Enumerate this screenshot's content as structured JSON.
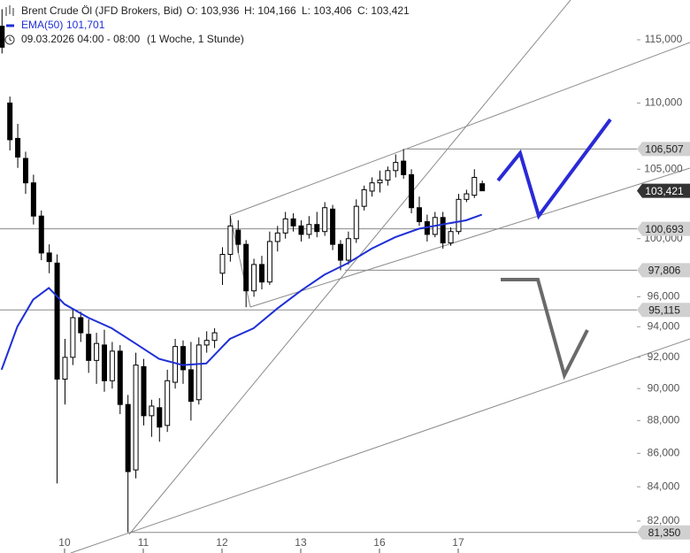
{
  "chart_data": {
    "type": "candlestick",
    "title": "Brent Crude Öl (JFD Brokers, Bid)",
    "ohlc_labels": [
      "O: 103,936",
      "H: 104,166",
      "L: 103,406",
      "C: 103,421"
    ],
    "subtitle": "09.03.2026 04:00 - 08:00",
    "period": "(1 Woche, 1 Stunde)",
    "log_scale": true,
    "ylim": [
      80.18,
      118.26
    ],
    "yticks": [
      {
        "value": 115,
        "label": "115,000"
      },
      {
        "value": 110,
        "label": "110,000"
      },
      {
        "value": 105,
        "label": "105,000"
      },
      {
        "value": 100,
        "label": "100,000"
      },
      {
        "value": 96,
        "label": "96,000"
      },
      {
        "value": 94,
        "label": "94,000"
      },
      {
        "value": 92,
        "label": "92,000"
      },
      {
        "value": 90,
        "label": "90,000"
      },
      {
        "value": 88,
        "label": "88,000"
      },
      {
        "value": 86,
        "label": "86,000"
      },
      {
        "value": 84,
        "label": "84,000"
      },
      {
        "value": 82,
        "label": "82,000"
      }
    ],
    "xlim": [
      -0.82,
      7.27
    ],
    "xticks": [
      {
        "value": 0,
        "label": "10"
      },
      {
        "value": 1,
        "label": "11"
      },
      {
        "value": 2,
        "label": "12"
      },
      {
        "value": 3,
        "label": "13"
      },
      {
        "value": 4,
        "label": "16"
      },
      {
        "value": 5,
        "label": "17"
      }
    ],
    "up_color": "#ffffff",
    "down_color": "#000000",
    "x": [
      -0.8,
      -0.7,
      -0.6,
      -0.5,
      -0.4,
      -0.3,
      -0.2,
      -0.1,
      0.0,
      0.1,
      0.2,
      0.3,
      0.4,
      0.5,
      0.6,
      0.7,
      0.8,
      0.9,
      1.0,
      1.1,
      1.2,
      1.3,
      1.4,
      1.5,
      1.6,
      1.7,
      1.8,
      1.9,
      2.0,
      2.1,
      2.2,
      2.3,
      2.4,
      2.5,
      2.6,
      2.7,
      2.8,
      2.9,
      3.0,
      3.1,
      3.2,
      3.3,
      3.4,
      3.5,
      3.6,
      3.7,
      3.8,
      3.9,
      4.0,
      4.1,
      4.2,
      4.3,
      4.4,
      4.5,
      4.6,
      4.7,
      4.8,
      4.9,
      5.0,
      5.1,
      5.2,
      5.3
    ],
    "open": [
      116.1,
      110.0,
      107.3,
      105.8,
      104.0,
      101.6,
      99.0,
      98.3,
      90.6,
      92.0,
      94.6,
      93.5,
      91.8,
      92.8,
      90.5,
      92.4,
      89.0,
      85.0,
      91.4,
      88.3,
      88.8,
      87.7,
      90.4,
      92.7,
      91.2,
      89.3,
      92.8,
      93.1,
      97.6,
      98.9,
      100.6,
      99.6,
      96.4,
      98.2,
      97.0,
      99.8,
      100.4,
      101.4,
      100.9,
      100.3,
      101.0,
      100.5,
      102.1,
      99.6,
      98.5,
      100.0,
      102.3,
      103.4,
      104.0,
      104.2,
      104.9,
      105.6,
      104.6,
      102.2,
      101.2,
      100.3,
      101.5,
      99.7,
      100.5,
      102.8,
      103.1,
      103.936
    ],
    "high": [
      117.5,
      110.5,
      108.4,
      106.3,
      104.6,
      102.0,
      99.6,
      98.9,
      93.2,
      95.2,
      95.0,
      94.5,
      93.6,
      93.8,
      93.0,
      92.8,
      89.6,
      92.3,
      91.9,
      89.3,
      89.4,
      91.2,
      93.2,
      93.1,
      93.0,
      93.3,
      93.7,
      93.9,
      99.4,
      101.6,
      101.3,
      99.9,
      98.6,
      98.8,
      100.5,
      100.9,
      101.9,
      101.8,
      101.3,
      101.6,
      101.9,
      102.6,
      102.4,
      99.9,
      100.5,
      102.8,
      103.8,
      104.4,
      104.9,
      105.2,
      106.1,
      106.507,
      105.0,
      103.0,
      101.7,
      101.9,
      101.9,
      100.8,
      103.2,
      103.5,
      105.0,
      104.166
    ],
    "low": [
      113.9,
      106.4,
      105.1,
      103.2,
      101.0,
      98.5,
      97.6,
      84.2,
      89.0,
      91.5,
      93.0,
      91.0,
      90.3,
      89.8,
      90.0,
      88.4,
      81.35,
      84.5,
      87.7,
      87.0,
      86.7,
      87.3,
      90.0,
      90.3,
      88.0,
      89.0,
      92.3,
      92.6,
      96.8,
      98.4,
      99.0,
      95.3,
      96.0,
      96.5,
      96.8,
      99.1,
      100.0,
      100.5,
      99.8,
      100.0,
      100.1,
      100.2,
      99.2,
      97.8,
      98.2,
      99.7,
      102.0,
      103.0,
      103.3,
      103.8,
      104.4,
      104.3,
      101.8,
      100.9,
      99.8,
      100.1,
      99.3,
      99.5,
      100.3,
      102.6,
      102.9,
      103.406
    ],
    "close": [
      114.4,
      107.2,
      105.9,
      104.0,
      101.6,
      99.0,
      98.4,
      90.6,
      92.0,
      94.6,
      93.6,
      91.8,
      92.9,
      90.5,
      92.4,
      89.0,
      84.9,
      91.5,
      88.3,
      88.9,
      87.6,
      90.5,
      92.7,
      91.2,
      89.2,
      92.8,
      93.1,
      93.6,
      98.9,
      100.9,
      99.6,
      96.4,
      98.2,
      97.0,
      99.8,
      100.4,
      101.4,
      100.9,
      100.3,
      101.0,
      100.5,
      102.2,
      99.6,
      98.5,
      100.0,
      102.3,
      103.5,
      104.0,
      104.2,
      104.9,
      105.5,
      104.6,
      102.2,
      101.2,
      100.3,
      101.5,
      99.7,
      100.5,
      102.8,
      103.2,
      104.4,
      103.421
    ],
    "ema": {
      "name": "EMA(50)",
      "color": "#1f2fd6",
      "last_label": "101,701",
      "x": [
        -0.8,
        -0.6,
        -0.4,
        -0.2,
        0.0,
        0.3,
        0.6,
        0.9,
        1.2,
        1.5,
        1.8,
        2.1,
        2.4,
        2.7,
        3.0,
        3.3,
        3.6,
        3.9,
        4.2,
        4.5,
        4.8,
        5.1,
        5.3
      ],
      "values": [
        91.2,
        94.0,
        95.8,
        96.6,
        95.5,
        94.6,
        93.9,
        92.9,
        91.9,
        91.5,
        91.6,
        93.2,
        93.9,
        95.2,
        96.4,
        97.5,
        98.3,
        99.3,
        100.1,
        100.7,
        101.0,
        101.3,
        101.701
      ]
    },
    "price_levels": [
      {
        "value": 106.507,
        "label": "106,507",
        "color": "#d0d0d0"
      },
      {
        "value": 103.421,
        "label": "103,421",
        "color": "#333333"
      },
      {
        "value": 100.693,
        "label": "100,693",
        "color": "#d0d0d0"
      },
      {
        "value": 97.806,
        "label": "97,806",
        "color": "#d0d0d0"
      },
      {
        "value": 95.115,
        "label": "95,115",
        "color": "#d0d0d0"
      },
      {
        "value": 81.35,
        "label": "81,350",
        "color": "#d0d0d0"
      }
    ]
  }
}
